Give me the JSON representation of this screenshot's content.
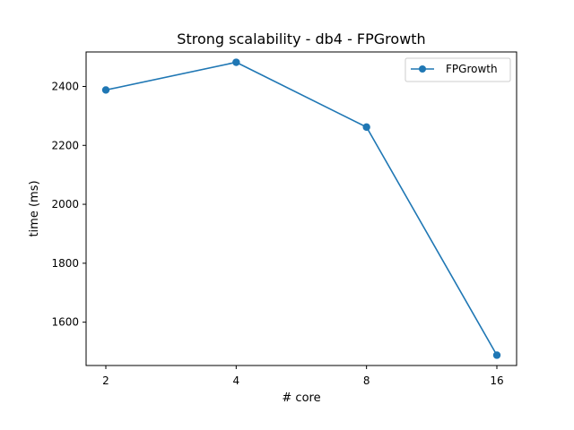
{
  "chart_data": {
    "type": "line",
    "title": "Strong scalability - db4 - FPGrowth",
    "xlabel": "# core",
    "ylabel": "time (ms)",
    "categories": [
      "2",
      "4",
      "8",
      "16"
    ],
    "series": [
      {
        "name": "FPGrowth",
        "values": [
          2388,
          2482,
          2262,
          1488
        ],
        "color": "#1f77b4",
        "marker": "circle"
      }
    ],
    "yticks": [
      1600,
      1800,
      2000,
      2200,
      2400
    ],
    "ylim": [
      1453,
      2517
    ],
    "grid": false,
    "legend": "top-right"
  }
}
